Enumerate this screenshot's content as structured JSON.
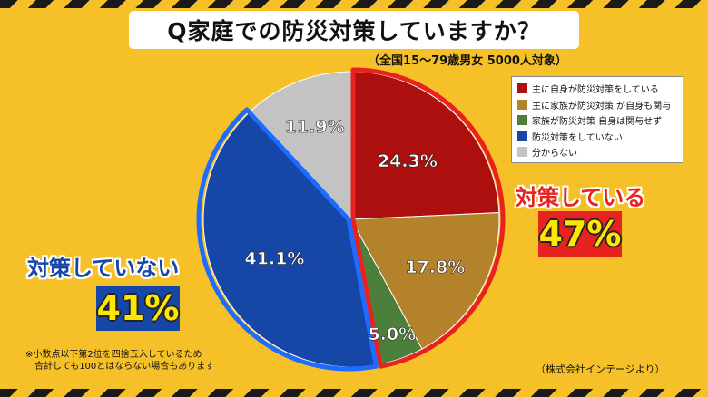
{
  "title": "Q家庭での防災対策していますか？",
  "subtitle": "（全国15～79歳男女 5000人対象）",
  "chart_data": {
    "type": "pie",
    "slices": [
      {
        "label": "主に自身が防災対策をしている",
        "value": 24.3,
        "display": "24.3%",
        "color": "#ad0f0f"
      },
      {
        "label": "主に家族が防災対策 が自身も関与",
        "value": 17.8,
        "display": "17.8%",
        "color": "#b5822c"
      },
      {
        "label": "家族が防災対策 自身は関与せず",
        "value": 5.0,
        "display": "5.0%",
        "color": "#4c7f3c"
      },
      {
        "label": "防災対策をしていない",
        "value": 41.1,
        "display": "41.1%",
        "color": "#1646a6"
      },
      {
        "label": "分からない",
        "value": 11.9,
        "display": "11.9%",
        "color": "#c3c3c3"
      }
    ],
    "start_angle_deg": 0,
    "direction": "clockwise",
    "legend_position": "top-right"
  },
  "callouts": {
    "doing_label": "対策している",
    "doing_value": "47%",
    "not_doing_label": "対策していない",
    "not_doing_value": "41%"
  },
  "note": {
    "line1": "※小数点以下第2位を四捨五入しているため",
    "line2": "合計しても100とはならない場合もあります"
  },
  "source": "（株式会社インテージより）",
  "colors": {
    "background": "#f6c128",
    "highlight_red": "#e8231f",
    "highlight_blue": "#1646a6"
  }
}
